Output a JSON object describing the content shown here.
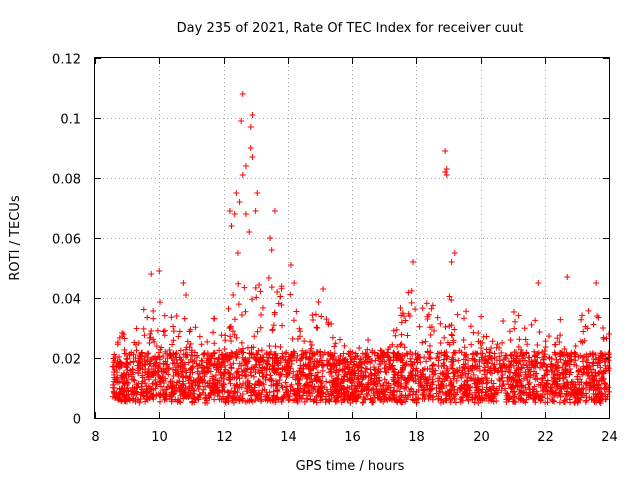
{
  "chart_data": {
    "type": "scatter",
    "title": "Day 235 of 2021, Rate Of TEC Index for receiver cuut",
    "xlabel": "GPS time / hours",
    "ylabel": "ROTI / TECUs",
    "xlim": [
      8,
      24
    ],
    "ylim": [
      0,
      0.12
    ],
    "xticks": [
      8,
      10,
      12,
      14,
      16,
      18,
      20,
      22,
      24
    ],
    "xtick_labels": [
      "8",
      "10",
      "12",
      "14",
      "16",
      "18",
      "20",
      "22",
      "24"
    ],
    "yticks": [
      0,
      0.02,
      0.04,
      0.06,
      0.08,
      0.1,
      0.12
    ],
    "ytick_labels": [
      "0",
      "0.02",
      "0.04",
      "0.06",
      "0.08",
      "0.1",
      "0.12"
    ],
    "grid": true,
    "marker": "+",
    "color": "#ff0000",
    "series": [
      {
        "name": "ROTI",
        "x_range": [
          8.55,
          24.0
        ],
        "baseline_range": [
          0.005,
          0.022
        ],
        "notable_points": [
          {
            "x": 12.6,
            "y": 0.108
          },
          {
            "x": 12.55,
            "y": 0.099
          },
          {
            "x": 12.9,
            "y": 0.101
          },
          {
            "x": 12.85,
            "y": 0.097
          },
          {
            "x": 12.85,
            "y": 0.09
          },
          {
            "x": 12.9,
            "y": 0.087
          },
          {
            "x": 12.7,
            "y": 0.084
          },
          {
            "x": 12.6,
            "y": 0.081
          },
          {
            "x": 12.4,
            "y": 0.075
          },
          {
            "x": 13.05,
            "y": 0.075
          },
          {
            "x": 12.5,
            "y": 0.072
          },
          {
            "x": 12.2,
            "y": 0.069
          },
          {
            "x": 12.35,
            "y": 0.068
          },
          {
            "x": 12.7,
            "y": 0.068
          },
          {
            "x": 13.0,
            "y": 0.069
          },
          {
            "x": 13.6,
            "y": 0.069
          },
          {
            "x": 12.25,
            "y": 0.064
          },
          {
            "x": 12.8,
            "y": 0.062
          },
          {
            "x": 13.45,
            "y": 0.06
          },
          {
            "x": 13.5,
            "y": 0.056
          },
          {
            "x": 12.45,
            "y": 0.055
          },
          {
            "x": 18.9,
            "y": 0.089
          },
          {
            "x": 18.95,
            "y": 0.083
          },
          {
            "x": 18.9,
            "y": 0.082
          },
          {
            "x": 18.95,
            "y": 0.081
          },
          {
            "x": 19.2,
            "y": 0.055
          },
          {
            "x": 19.1,
            "y": 0.052
          },
          {
            "x": 17.9,
            "y": 0.052
          },
          {
            "x": 9.75,
            "y": 0.048
          },
          {
            "x": 10.0,
            "y": 0.049
          },
          {
            "x": 22.7,
            "y": 0.047
          },
          {
            "x": 23.6,
            "y": 0.045
          },
          {
            "x": 21.8,
            "y": 0.045
          },
          {
            "x": 14.1,
            "y": 0.051
          },
          {
            "x": 14.2,
            "y": 0.045
          },
          {
            "x": 10.75,
            "y": 0.045
          },
          {
            "x": 15.1,
            "y": 0.043
          },
          {
            "x": 16.5,
            "y": 0.026
          },
          {
            "x": 24.0,
            "y": 0.028
          }
        ]
      }
    ]
  }
}
